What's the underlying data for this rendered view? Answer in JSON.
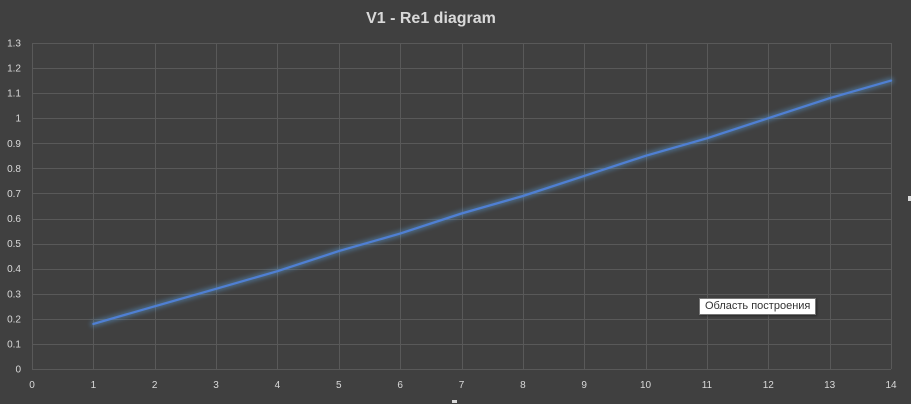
{
  "colors": {
    "background": "#404040",
    "gridline": "#595959",
    "text": "#d9d9d9",
    "series": "#4f7fd3",
    "series_glow": "#5b9bd5"
  },
  "chart_data": {
    "type": "line",
    "title": "V1 - Re1 diagram",
    "xlabel": "",
    "ylabel": "",
    "xlim": [
      0,
      14
    ],
    "ylim": [
      0,
      1.3
    ],
    "x_ticks": [
      0,
      1,
      2,
      3,
      4,
      5,
      6,
      7,
      8,
      9,
      10,
      11,
      12,
      13,
      14
    ],
    "y_ticks": [
      0,
      0.1,
      0.2,
      0.3,
      0.4,
      0.5,
      0.6,
      0.7,
      0.8,
      0.9,
      1,
      1.1,
      1.2,
      1.3
    ],
    "grid": true,
    "legend": "none",
    "series": [
      {
        "x": [
          1,
          2,
          3,
          4,
          5,
          6,
          7,
          8,
          9,
          10,
          11,
          12,
          13,
          14
        ],
        "values": [
          0.18,
          0.25,
          0.32,
          0.39,
          0.47,
          0.54,
          0.62,
          0.69,
          0.77,
          0.85,
          0.92,
          1.0,
          1.08,
          1.15
        ]
      }
    ]
  },
  "tooltip": {
    "text": "Область построения"
  }
}
